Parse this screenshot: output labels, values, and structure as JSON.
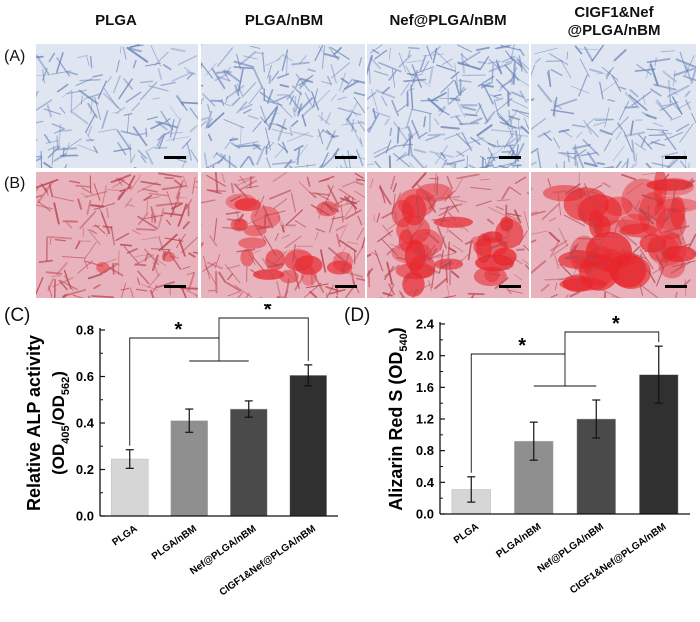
{
  "columns": [
    "PLGA",
    "PLGA/nBM",
    "Nef@PLGA/nBM",
    "CIGF1&Nef",
    "@PLGA/nBM"
  ],
  "rows": [
    "(A)",
    "(B)"
  ],
  "panels": {
    "c": "(C)",
    "d": "(D)"
  },
  "colors": {
    "stain_a_bg": "#dfe6f2",
    "stain_a_cell": "#6d86b8",
    "stain_b_bg": "#e9b3bd",
    "stain_b_cell": "#b8454f",
    "stain_b_red": "#e8262c",
    "bar_fills": [
      "#d6d6d6",
      "#8f8f8f",
      "#4a4a4a",
      "#303030"
    ]
  },
  "chart_data": [
    {
      "type": "bar",
      "panel": "(C)",
      "categories": [
        "PLGA",
        "PLGA/nBM",
        "Nef@PLGA/nBM",
        "CIGF1&Nef@PLGA/nBM"
      ],
      "values": [
        0.245,
        0.41,
        0.46,
        0.605
      ],
      "errors": [
        0.04,
        0.05,
        0.035,
        0.045
      ],
      "ylabel_line1": "Relative ALP activity",
      "ylabel_line2": {
        "a": "(OD",
        "sub1": "405",
        "b": "/OD",
        "sub2": "562",
        "c": ")"
      },
      "ylim": [
        0,
        0.8
      ],
      "yticks": [
        "0.0",
        "0.2",
        "0.4",
        "0.6",
        "0.8"
      ],
      "significance": [
        "*",
        "*"
      ]
    },
    {
      "type": "bar",
      "panel": "(D)",
      "categories": [
        "PLGA",
        "PLGA/nBM",
        "Nef@PLGA/nBM",
        "CIGF1&Nef@PLGA/nBM"
      ],
      "values": [
        0.31,
        0.92,
        1.2,
        1.76
      ],
      "errors": [
        0.16,
        0.24,
        0.24,
        0.36
      ],
      "ylabel_line1": {
        "a": "Alizarin Red S (OD",
        "sub": "540",
        "c": ")"
      },
      "ylim": [
        0,
        2.4
      ],
      "yticks": [
        "0.0",
        "0.4",
        "0.8",
        "1.2",
        "1.6",
        "2.0",
        "2.4"
      ],
      "significance": [
        "*",
        "*"
      ]
    }
  ]
}
